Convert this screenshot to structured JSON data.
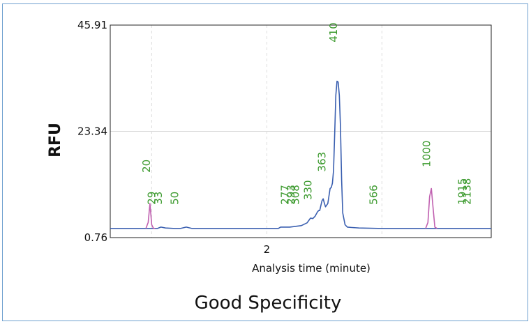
{
  "chart_data": {
    "type": "line",
    "caption": "Good Specificity",
    "xlabel": "Analysis time (minute)",
    "ylabel": "RFU",
    "x_ticks": [
      "2"
    ],
    "y_ticks": [
      "0.76",
      "23.34",
      "45.91"
    ],
    "ylim": [
      0.76,
      45.91
    ],
    "xlim": [
      0.64,
      3.95
    ],
    "grid": true,
    "series": [
      {
        "color": "#3a5fb0",
        "x": [
          0.64,
          0.95,
          0.98,
          1.05,
          1.08,
          1.12,
          1.16,
          1.2,
          1.25,
          1.3,
          1.35,
          1.4,
          1.5,
          1.7,
          1.9,
          2.1,
          2.12,
          2.2,
          2.3,
          2.35,
          2.38,
          2.4,
          2.42,
          2.44,
          2.45,
          2.46,
          2.47,
          2.48,
          2.49,
          2.5,
          2.51,
          2.53,
          2.55,
          2.56,
          2.57,
          2.58,
          2.59,
          2.6,
          2.61,
          2.62,
          2.63,
          2.64,
          2.65,
          2.66,
          2.68,
          2.7,
          2.74,
          2.8,
          3.0,
          3.2,
          3.4,
          3.6,
          3.7,
          3.8,
          3.95
        ],
        "y": [
          2.7,
          2.7,
          2.7,
          2.7,
          3.0,
          2.8,
          2.75,
          2.7,
          2.7,
          3.0,
          2.7,
          2.7,
          2.7,
          2.7,
          2.7,
          2.7,
          3.0,
          3.0,
          3.3,
          3.9,
          4.9,
          4.8,
          5.3,
          6.2,
          6.5,
          6.5,
          7.6,
          8.6,
          9.0,
          8.1,
          7.3,
          8.0,
          11.2,
          11.4,
          12.3,
          15.0,
          23.0,
          31.0,
          34.0,
          33.8,
          31.0,
          24.5,
          13.0,
          6.0,
          3.5,
          3.0,
          2.9,
          2.8,
          2.7,
          2.7,
          2.7,
          2.7,
          2.7,
          2.7,
          2.7
        ]
      },
      {
        "color": "#c060b0",
        "x": [
          0.95,
          0.97,
          0.985,
          1.0,
          1.015,
          1.03
        ],
        "y": [
          2.7,
          4.0,
          8.0,
          3.5,
          2.75,
          2.7
        ]
      },
      {
        "color": "#c060b0",
        "x": [
          3.38,
          3.4,
          3.415,
          3.43,
          3.445,
          3.46,
          3.48
        ],
        "y": [
          2.7,
          4.0,
          9.5,
          11.2,
          7.0,
          3.0,
          2.7
        ]
      }
    ],
    "peak_labels": [
      {
        "text": "20",
        "x": 0.985,
        "y": 13.8
      },
      {
        "text": "29",
        "x": 1.03,
        "y": 7.0
      },
      {
        "text": "33",
        "x": 1.09,
        "y": 7.0
      },
      {
        "text": "50",
        "x": 1.23,
        "y": 7.0
      },
      {
        "text": "277",
        "x": 2.19,
        "y": 7.0
      },
      {
        "text": "293",
        "x": 2.24,
        "y": 7.0
      },
      {
        "text": "308",
        "x": 2.28,
        "y": 7.0
      },
      {
        "text": "330",
        "x": 2.39,
        "y": 8.0
      },
      {
        "text": "363",
        "x": 2.51,
        "y": 14.0
      },
      {
        "text": "410",
        "x": 2.61,
        "y": 41.5
      },
      {
        "text": "566",
        "x": 2.96,
        "y": 7.0
      },
      {
        "text": "1000",
        "x": 3.42,
        "y": 15.0
      },
      {
        "text": "1915",
        "x": 3.73,
        "y": 7.0
      },
      {
        "text": "2138",
        "x": 3.77,
        "y": 7.0
      }
    ]
  }
}
